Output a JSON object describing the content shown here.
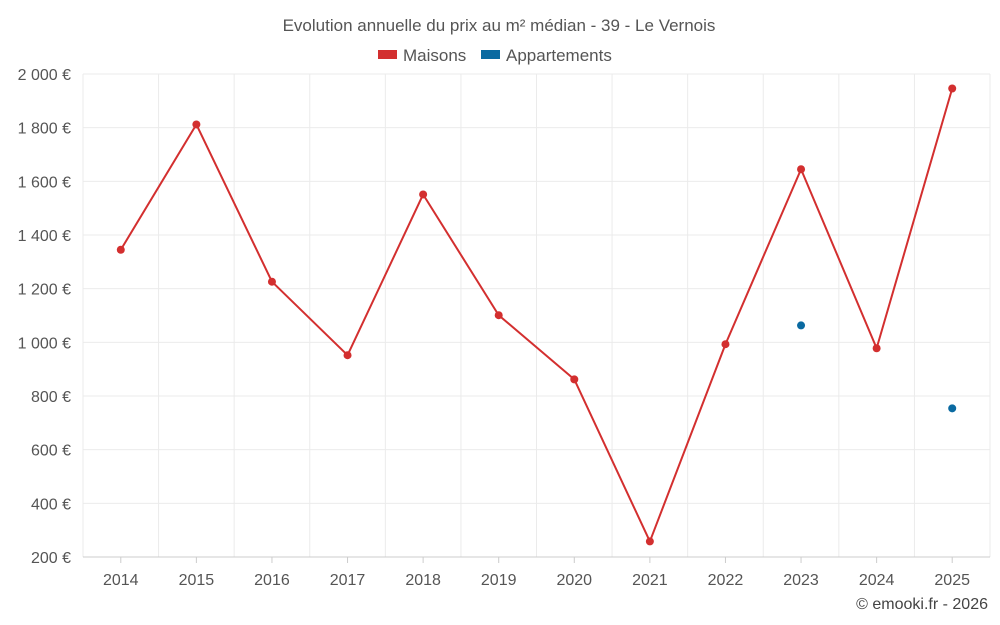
{
  "chart_data": {
    "type": "line",
    "title": "Evolution annuelle du prix au m² médian - 39 - Le Vernois",
    "categories": [
      "2014",
      "2015",
      "2016",
      "2017",
      "2018",
      "2019",
      "2020",
      "2021",
      "2022",
      "2023",
      "2024",
      "2025"
    ],
    "series": [
      {
        "name": "Maisons",
        "color": "#d32f2f",
        "values": [
          1345,
          1812,
          1226,
          952,
          1551,
          1101,
          862,
          258,
          993,
          1645,
          978,
          1946
        ]
      },
      {
        "name": "Appartements",
        "color": "#0a6aa1",
        "values": [
          null,
          null,
          null,
          null,
          null,
          null,
          null,
          null,
          null,
          1063,
          null,
          754
        ]
      }
    ],
    "y_ticks": [
      200,
      400,
      600,
      800,
      1000,
      1200,
      1400,
      1600,
      1800,
      2000
    ],
    "y_tick_labels": [
      "200 €",
      "400 €",
      "600 €",
      "800 €",
      "1 000 €",
      "1 200 €",
      "1 400 €",
      "1 600 €",
      "1 800 €",
      "2 000 €"
    ],
    "ylim": [
      200,
      2000
    ],
    "xlabel": "",
    "ylabel": "",
    "grid": true,
    "legend_position": "top-center"
  },
  "credit": "© emooki.fr - 2026"
}
